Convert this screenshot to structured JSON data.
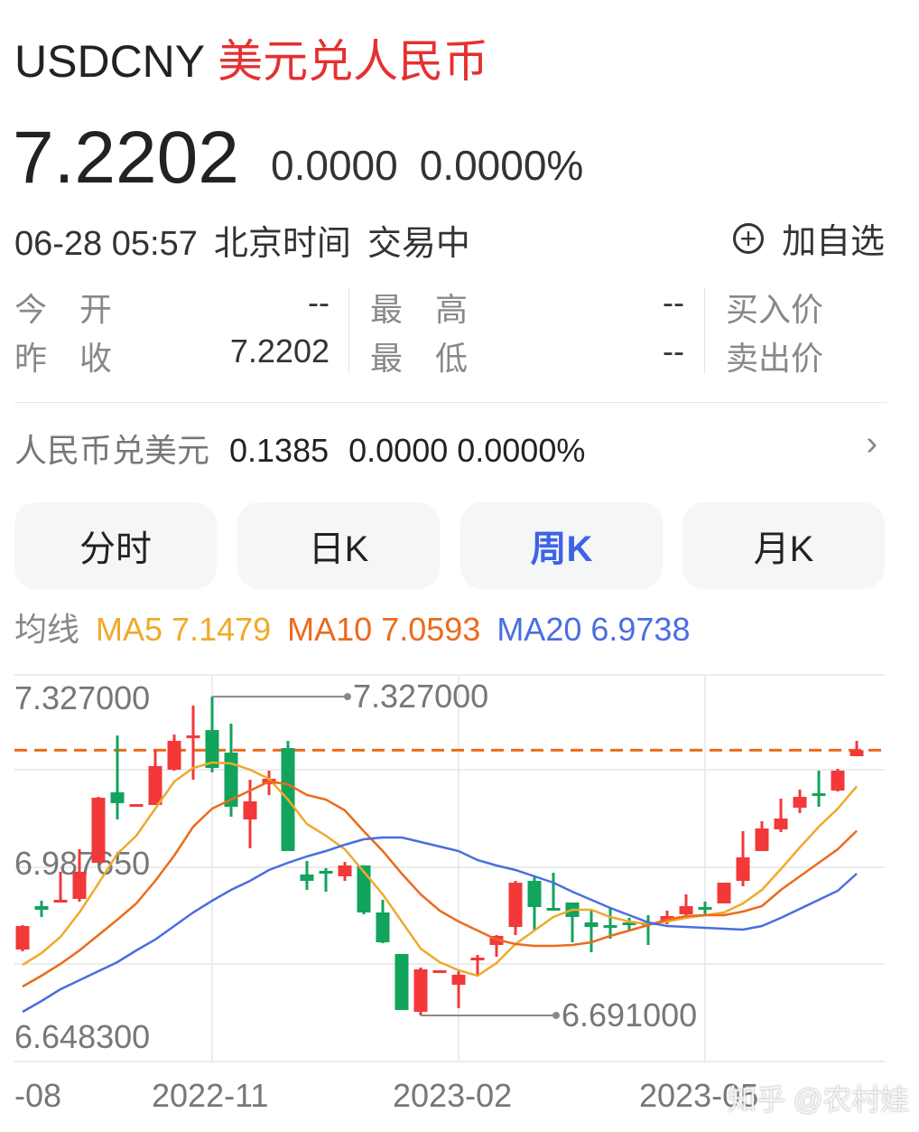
{
  "header": {
    "symbol": "USDCNY",
    "name": "美元兑人民币",
    "price": "7.2202",
    "change": "0.0000",
    "change_pct": "0.0000%",
    "datetime": "06-28 05:57",
    "timezone": "北京时间",
    "status": "交易中",
    "add_watch": "加自选",
    "add_watch_icon": "plus-circle-icon"
  },
  "stats": {
    "open_label": "今　开",
    "open": "--",
    "prev_close_label": "昨　收",
    "prev_close": "7.2202",
    "high_label": "最　高",
    "high": "--",
    "low_label": "最　低",
    "low": "--",
    "bid_label": "买入价",
    "ask_label": "卖出价"
  },
  "reverse": {
    "label": "人民币兑美元",
    "price": "0.1385",
    "change": "0.0000",
    "change_pct": "0.0000%",
    "arrow_icon": "chevron-right-icon"
  },
  "tabs": [
    {
      "label": "分时",
      "active": false
    },
    {
      "label": "日K",
      "active": false
    },
    {
      "label": "周K",
      "active": true
    },
    {
      "label": "月K",
      "active": false
    }
  ],
  "ma_legend": {
    "label": "均线",
    "ma5": "MA5 7.1479",
    "ma10": "MA10 7.0593",
    "ma20": "MA20 6.9738"
  },
  "colors": {
    "up": "#f23838",
    "down": "#12a35c",
    "ma5": "#f0a92a",
    "ma10": "#ec6a1c",
    "ma20": "#4a6ee0",
    "last_price_line": "#ec6a1c",
    "accent": "#3d63e6",
    "title_red": "#e5312f"
  },
  "watermark": "知乎 @农村娃",
  "chart_data": {
    "type": "candlestick",
    "period": "weekly",
    "y_tick_labels": [
      "7.327000",
      "6.987650",
      "6.648300"
    ],
    "x_tick_labels": [
      "-08",
      "2022-11",
      "2023-02",
      "2023-05"
    ],
    "ylim": [
      6.59,
      7.383
    ],
    "grid": true,
    "max_marker": {
      "label": "7.327000",
      "value": 7.327
    },
    "min_marker": {
      "label": "6.691000",
      "value": 6.691
    },
    "last_price": 7.2202,
    "candles_ohlc": [
      [
        6.8225,
        6.8711,
        6.8189,
        6.8693
      ],
      [
        6.909,
        6.9198,
        6.8874,
        6.9018
      ],
      [
        6.9162,
        6.9775,
        6.9162,
        6.9216
      ],
      [
        6.9234,
        7.0225,
        6.918,
        6.9775
      ],
      [
        6.9955,
        7.127,
        6.9955,
        7.1252
      ],
      [
        7.136,
        7.2495,
        7.082,
        7.1144
      ],
      [
        7.1072,
        7.1126,
        7.1072,
        7.1126
      ],
      [
        7.1108,
        7.2207,
        7.1108,
        7.1883
      ],
      [
        7.1811,
        7.2513,
        7.1793,
        7.2387
      ],
      [
        7.2441,
        7.309,
        7.1612,
        7.2495
      ],
      [
        7.2603,
        7.327,
        7.1757,
        7.1847
      ],
      [
        7.2153,
        7.273,
        7.0874,
        7.1072
      ],
      [
        7.082,
        7.1612,
        7.0243,
        7.118
      ],
      [
        7.1522,
        7.1793,
        7.1306,
        7.163
      ],
      [
        7.2243,
        7.2387,
        7.0189,
        7.0189
      ],
      [
        6.9721,
        6.9991,
        6.9414,
        6.9594
      ],
      [
        6.9793,
        6.9847,
        6.9378,
        6.9757
      ],
      [
        6.9685,
        6.9973,
        6.9594,
        6.9901
      ],
      [
        6.9901,
        6.9901,
        6.8928,
        6.8964
      ],
      [
        6.8964,
        6.9216,
        6.8351,
        6.8369
      ],
      [
        6.8135,
        6.8135,
        6.7018,
        6.7018
      ],
      [
        6.6982,
        6.7865,
        6.691,
        6.7829
      ],
      [
        6.7775,
        6.7811,
        6.7775,
        6.7811
      ],
      [
        6.7522,
        6.7829,
        6.7054,
        6.7721
      ],
      [
        6.8027,
        6.8117,
        6.7703,
        6.8063
      ],
      [
        6.8315,
        6.8513,
        6.8081,
        6.8495
      ],
      [
        6.8675,
        6.9594,
        6.8513,
        6.9558
      ],
      [
        6.9594,
        6.9702,
        6.8603,
        6.9072
      ],
      [
        6.9054,
        6.9757,
        6.9018,
        6.9018
      ],
      [
        6.9162,
        6.9162,
        6.8369,
        6.8874
      ],
      [
        6.8765,
        6.9,
        6.8171,
        6.8675
      ],
      [
        6.8711,
        6.9072,
        6.8441,
        6.8675
      ],
      [
        6.8765,
        6.8856,
        6.8603,
        6.8711
      ],
      [
        6.8765,
        6.891,
        6.8315,
        6.8729
      ],
      [
        6.8783,
        6.9,
        6.8729,
        6.8892
      ],
      [
        6.8928,
        6.9324,
        6.891,
        6.909
      ],
      [
        6.9072,
        6.918,
        6.8928,
        6.9054
      ],
      [
        6.9144,
        6.9558,
        6.9144,
        6.9558
      ],
      [
        6.9594,
        7.0585,
        6.9486,
        7.0063
      ],
      [
        7.0189,
        7.0784,
        7.0189,
        7.0639
      ],
      [
        7.0621,
        7.1234,
        7.0567,
        7.0838
      ],
      [
        7.1054,
        7.1414,
        7.0946,
        7.127
      ],
      [
        7.1342,
        7.1793,
        7.1072,
        7.1306
      ],
      [
        7.1396,
        7.1829,
        7.1378,
        7.1793
      ],
      [
        7.2081,
        7.2387,
        7.2081,
        7.2202
      ]
    ],
    "series": [
      {
        "name": "MA5",
        "values": [
          6.7919,
          6.8153,
          6.8477,
          6.8964,
          6.954,
          7.0135,
          7.0495,
          7.1036,
          7.1576,
          7.1847,
          7.1955,
          7.1937,
          7.1811,
          7.163,
          7.1216,
          7.0729,
          7.0495,
          7.0225,
          6.9775,
          6.9324,
          6.8784,
          6.8243,
          6.7973,
          6.7811,
          6.7702,
          6.7955,
          6.8333,
          6.8603,
          6.8874,
          6.9018,
          6.9018,
          6.8874,
          6.8784,
          6.8729,
          6.8784,
          6.8856,
          6.891,
          6.8964,
          6.9144,
          6.9414,
          6.9829,
          7.0261,
          7.0675,
          7.1036,
          7.1479
        ]
      },
      {
        "name": "MA10",
        "values": [
          6.7486,
          6.7702,
          6.7937,
          6.8207,
          6.8513,
          6.882,
          6.9144,
          6.9594,
          7.0099,
          7.0675,
          7.1036,
          7.1216,
          7.1396,
          7.1576,
          7.1522,
          7.1306,
          7.1216,
          7.1,
          7.0585,
          7.0189,
          6.9738,
          6.9324,
          6.9,
          6.8784,
          6.8603,
          6.8423,
          6.8333,
          6.8297,
          6.8297,
          6.8315,
          6.8369,
          6.8495,
          6.8603,
          6.8711,
          6.882,
          6.8892,
          6.891,
          6.891,
          6.8982,
          6.909,
          6.9414,
          6.9684,
          6.9955,
          7.0225,
          7.0593
        ]
      },
      {
        "name": "MA20",
        "values": [
          6.6982,
          6.7198,
          6.7432,
          6.7612,
          6.7793,
          6.7973,
          6.8207,
          6.8423,
          6.8693,
          6.8964,
          6.9198,
          6.9414,
          6.9594,
          6.9811,
          6.9955,
          7.0081,
          7.0189,
          7.0315,
          7.0423,
          7.0459,
          7.0459,
          7.0369,
          7.0279,
          7.0189,
          7.0009,
          6.9901,
          6.9811,
          6.9684,
          6.9558,
          6.9378,
          6.9216,
          6.9054,
          6.891,
          6.8765,
          6.8693,
          6.8675,
          6.8657,
          6.8639,
          6.8621,
          6.8693,
          6.8856,
          6.9036,
          6.9216,
          6.9396,
          6.9738
        ]
      }
    ]
  }
}
